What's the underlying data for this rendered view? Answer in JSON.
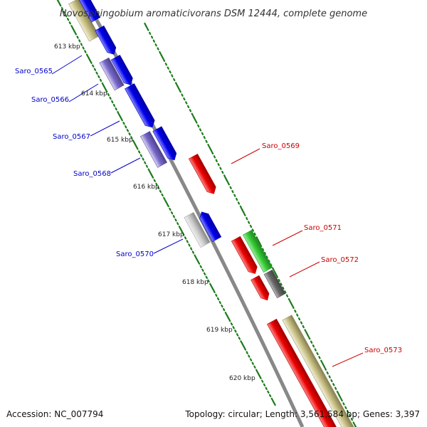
{
  "title": "Novosphingobium aromaticivorans DSM 12444, complete genome",
  "footer": {
    "accession": "Accession: NC_007794",
    "summary": "Topology: circular; Length: 3,561,584 bp; Genes: 3,397"
  },
  "colors": {
    "forward_label": "#0000cc",
    "reverse_label": "#cc0000",
    "cds_blue": "#0000ee",
    "cds_red": "#ee0000",
    "cds_green": "#33cc33",
    "cds_gray": "#666666",
    "trna_purple": "#7766cc",
    "feature_khaki": "#c8bf80",
    "feature_light": "#cccccc",
    "backbone": "#888888",
    "tick": "#1a7a1a"
  },
  "kbp_labels": [
    "613 kbp",
    "614 kbp",
    "615 kbp",
    "616 kbp",
    "617 kbp",
    "618 kbp",
    "619 kbp",
    "620 kbp"
  ],
  "forward_genes": [
    "Saro_0565",
    "Saro_0566",
    "Saro_0567",
    "Saro_0568",
    "Saro_0570"
  ],
  "reverse_genes": [
    "Saro_0569",
    "Saro_0571",
    "Saro_0572",
    "Saro_0573"
  ]
}
